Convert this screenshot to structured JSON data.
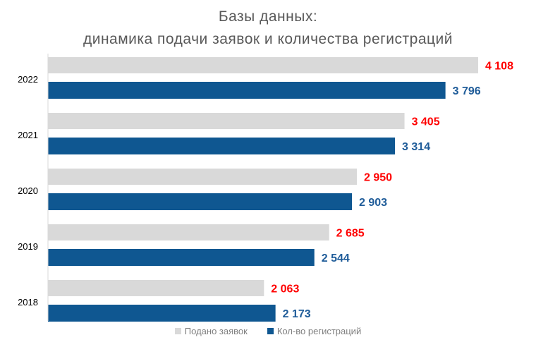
{
  "chart_data": {
    "type": "bar",
    "orientation": "horizontal",
    "title_line1": "Базы данных:",
    "title_line2": "динамика подачи заявок и количества регистраций",
    "categories": [
      "2022",
      "2021",
      "2020",
      "2019",
      "2018"
    ],
    "series": [
      {
        "name": "Подано заявок",
        "values": [
          4108,
          3405,
          2950,
          2685,
          2063
        ],
        "labels": [
          "4 108",
          "3 405",
          "2 950",
          "2 685",
          "2 063"
        ],
        "color": "#d9d9d9",
        "label_color": "#ff0000"
      },
      {
        "name": "Кол-во регистраций",
        "values": [
          3796,
          3314,
          2903,
          2544,
          2173
        ],
        "labels": [
          "3 796",
          "3 314",
          "2 903",
          "2 544",
          "2 173"
        ],
        "color": "#0f5791",
        "label_color": "#1f5c99"
      }
    ],
    "xlim": [
      0,
      4600
    ],
    "grid": false,
    "legend": "bottom"
  }
}
